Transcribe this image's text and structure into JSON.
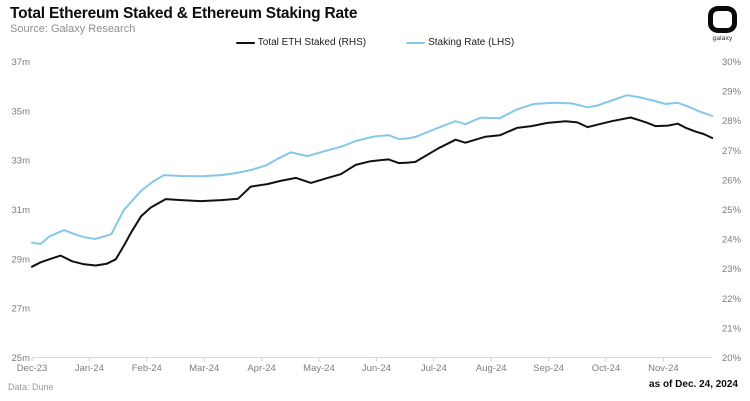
{
  "header": {
    "title": "Total Ethereum Staked & Ethereum Staking Rate",
    "subtitle": "Source: Galaxy Research",
    "logo_text": "galaxy"
  },
  "legend": [
    {
      "label": "Total ETH Staked (RHS)",
      "color": "#111111"
    },
    {
      "label": "Staking Rate (LHS)",
      "color": "#85c8ea"
    }
  ],
  "footer": {
    "left": "Data: Dune",
    "right": "as of Dec. 24, 2024"
  },
  "colors": {
    "eth_staked_line": "#111111",
    "staking_rate_line": "#85c8ea",
    "axis_line": "#d8d8d8",
    "tick_text": "#7d7d7d"
  },
  "chart_data": {
    "type": "line",
    "title": "Total Ethereum Staked & Ethereum Staking Rate",
    "x_axis": {
      "labels": [
        "Dec-23",
        "Jan-24",
        "Feb-24",
        "Mar-24",
        "Apr-24",
        "May-24",
        "Jun-24",
        "Jul-24",
        "Aug-24",
        "Sep-24",
        "Oct-24",
        "Nov-24"
      ],
      "range": [
        0,
        11.85
      ]
    },
    "y_left": {
      "tick_labels": [
        "37m",
        "35m",
        "33m",
        "31m",
        "29m",
        "27m",
        "25m"
      ],
      "tick_values": [
        37,
        35,
        33,
        31,
        29,
        27,
        25
      ],
      "min": 25,
      "max": 37,
      "unit": "m ETH"
    },
    "y_right": {
      "tick_labels": [
        "30%",
        "29%",
        "28%",
        "27%",
        "26%",
        "25%",
        "24%",
        "23%",
        "22%",
        "21%",
        "20%"
      ],
      "tick_values": [
        30,
        29,
        28,
        27,
        26,
        25,
        24,
        23,
        22,
        21,
        20
      ],
      "min": 20,
      "max": 30,
      "unit": "%"
    },
    "grid": false,
    "legend_position": "top-center",
    "series": [
      {
        "name": "Total ETH Staked (RHS)",
        "axis": "left",
        "color": "#111111",
        "points": [
          [
            0.0,
            28.7
          ],
          [
            0.15,
            28.88
          ],
          [
            0.3,
            29.0
          ],
          [
            0.5,
            29.15
          ],
          [
            0.7,
            28.92
          ],
          [
            0.91,
            28.8
          ],
          [
            1.11,
            28.75
          ],
          [
            1.3,
            28.82
          ],
          [
            1.46,
            29.0
          ],
          [
            1.6,
            29.55
          ],
          [
            1.73,
            30.1
          ],
          [
            1.9,
            30.75
          ],
          [
            2.07,
            31.1
          ],
          [
            2.33,
            31.44
          ],
          [
            2.6,
            31.4
          ],
          [
            2.94,
            31.36
          ],
          [
            3.3,
            31.4
          ],
          [
            3.59,
            31.46
          ],
          [
            3.81,
            31.95
          ],
          [
            4.1,
            32.05
          ],
          [
            4.33,
            32.18
          ],
          [
            4.6,
            32.3
          ],
          [
            4.86,
            32.1
          ],
          [
            5.12,
            32.28
          ],
          [
            5.38,
            32.45
          ],
          [
            5.64,
            32.83
          ],
          [
            5.9,
            32.98
          ],
          [
            6.21,
            33.05
          ],
          [
            6.39,
            32.9
          ],
          [
            6.55,
            32.92
          ],
          [
            6.68,
            32.95
          ],
          [
            7.08,
            33.5
          ],
          [
            7.38,
            33.85
          ],
          [
            7.55,
            33.73
          ],
          [
            7.9,
            33.97
          ],
          [
            8.15,
            34.03
          ],
          [
            8.45,
            34.33
          ],
          [
            8.7,
            34.4
          ],
          [
            8.98,
            34.53
          ],
          [
            9.3,
            34.6
          ],
          [
            9.5,
            34.55
          ],
          [
            9.68,
            34.36
          ],
          [
            9.85,
            34.46
          ],
          [
            10.1,
            34.6
          ],
          [
            10.43,
            34.75
          ],
          [
            10.7,
            34.55
          ],
          [
            10.86,
            34.4
          ],
          [
            11.08,
            34.42
          ],
          [
            11.25,
            34.5
          ],
          [
            11.4,
            34.32
          ],
          [
            11.56,
            34.18
          ],
          [
            11.7,
            34.08
          ],
          [
            11.85,
            33.92
          ]
        ]
      },
      {
        "name": "Staking Rate (LHS)",
        "axis": "right",
        "color": "#85c8ea",
        "points": [
          [
            0.0,
            23.9
          ],
          [
            0.15,
            23.85
          ],
          [
            0.3,
            24.1
          ],
          [
            0.56,
            24.32
          ],
          [
            0.75,
            24.18
          ],
          [
            0.91,
            24.08
          ],
          [
            1.1,
            24.02
          ],
          [
            1.38,
            24.18
          ],
          [
            1.6,
            25.0
          ],
          [
            1.9,
            25.65
          ],
          [
            2.1,
            25.95
          ],
          [
            2.3,
            26.18
          ],
          [
            2.6,
            26.15
          ],
          [
            2.94,
            26.14
          ],
          [
            3.3,
            26.18
          ],
          [
            3.59,
            26.26
          ],
          [
            3.81,
            26.35
          ],
          [
            4.07,
            26.5
          ],
          [
            4.3,
            26.75
          ],
          [
            4.51,
            26.95
          ],
          [
            4.8,
            26.82
          ],
          [
            5.12,
            27.0
          ],
          [
            5.4,
            27.15
          ],
          [
            5.64,
            27.33
          ],
          [
            5.95,
            27.48
          ],
          [
            6.21,
            27.53
          ],
          [
            6.39,
            27.4
          ],
          [
            6.55,
            27.42
          ],
          [
            6.68,
            27.47
          ],
          [
            7.08,
            27.78
          ],
          [
            7.38,
            28.0
          ],
          [
            7.55,
            27.9
          ],
          [
            7.82,
            28.12
          ],
          [
            8.15,
            28.1
          ],
          [
            8.45,
            28.4
          ],
          [
            8.74,
            28.58
          ],
          [
            9.1,
            28.62
          ],
          [
            9.4,
            28.6
          ],
          [
            9.68,
            28.47
          ],
          [
            9.85,
            28.53
          ],
          [
            10.1,
            28.7
          ],
          [
            10.37,
            28.88
          ],
          [
            10.6,
            28.8
          ],
          [
            10.86,
            28.68
          ],
          [
            11.04,
            28.58
          ],
          [
            11.25,
            28.62
          ],
          [
            11.45,
            28.48
          ],
          [
            11.6,
            28.35
          ],
          [
            11.85,
            28.18
          ]
        ]
      }
    ]
  }
}
